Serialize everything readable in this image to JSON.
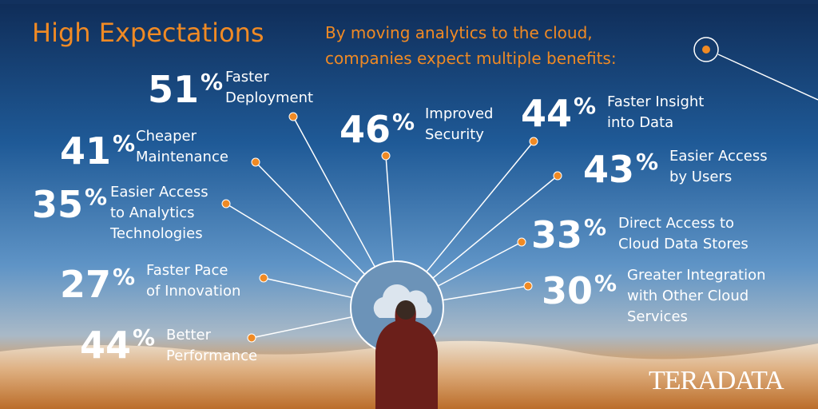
{
  "header": {
    "title": "High Expectations",
    "subtitle": [
      "By moving analytics to the cloud,",
      "companies expect multiple benefits:"
    ]
  },
  "items": [
    {
      "value": 51,
      "unit": "%",
      "label": [
        "Faster",
        "Deployment"
      ]
    },
    {
      "value": 46,
      "unit": "%",
      "label": [
        "Improved",
        "Security"
      ]
    },
    {
      "value": 44,
      "unit": "%",
      "label": [
        "Faster Insight",
        "into Data"
      ]
    },
    {
      "value": 41,
      "unit": "%",
      "label": [
        "Cheaper",
        "Maintenance"
      ]
    },
    {
      "value": 43,
      "unit": "%",
      "label": [
        "Easier Access",
        "by Users"
      ]
    },
    {
      "value": 35,
      "unit": "%",
      "label": [
        "Easier Access",
        "to Analytics",
        "Technologies"
      ]
    },
    {
      "value": 33,
      "unit": "%",
      "label": [
        "Direct Access to",
        "Cloud Data Stores"
      ]
    },
    {
      "value": 27,
      "unit": "%",
      "label": [
        "Faster Pace",
        "of Innovation"
      ]
    },
    {
      "value": 30,
      "unit": "%",
      "label": [
        "Greater Integration",
        "with Other Cloud",
        "Services"
      ]
    },
    {
      "value": 44,
      "unit": "%",
      "label": [
        "Better",
        "Performance"
      ]
    }
  ],
  "logo": "TERADATA"
}
